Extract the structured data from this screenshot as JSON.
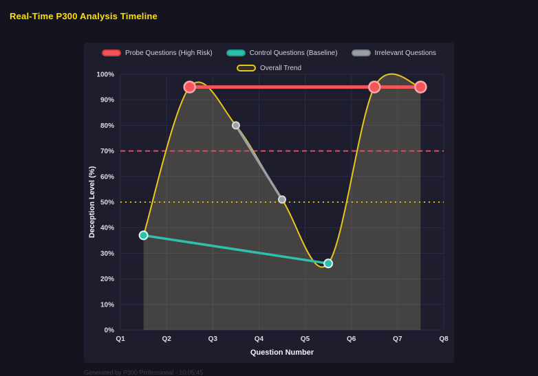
{
  "page": {
    "title": "Real-Time P300 Analysis Timeline",
    "footer": "Generated by P300 Professional - 10:05:45"
  },
  "chart_data": {
    "type": "line",
    "title": "Real-Time P300 Analysis Timeline",
    "xlabel": "Question Number",
    "ylabel": "Deception Level (%)",
    "xlim": [
      1,
      8
    ],
    "ylim": [
      0,
      100
    ],
    "grid": true,
    "legend_position": "top",
    "colors": {
      "grid": "#2b2b45",
      "tick_text": "#dcdce6",
      "axis_label_text": "#f0f0f5",
      "area_fill": "rgba(216,205,140,0.22)"
    },
    "x_ticks": [
      {
        "q": 1,
        "label": "Q1"
      },
      {
        "q": 2,
        "label": "Q2"
      },
      {
        "q": 3,
        "label": "Q3"
      },
      {
        "q": 4,
        "label": "Q4"
      },
      {
        "q": 5,
        "label": "Q5"
      },
      {
        "q": 6,
        "label": "Q6"
      },
      {
        "q": 7,
        "label": "Q7"
      },
      {
        "q": 8,
        "label": "Q8"
      }
    ],
    "y_ticks": [
      {
        "value": 0,
        "label": "0%"
      },
      {
        "value": 10,
        "label": "10%"
      },
      {
        "value": 20,
        "label": "20%"
      },
      {
        "value": 30,
        "label": "30%"
      },
      {
        "value": 40,
        "label": "40%"
      },
      {
        "value": 50,
        "label": "50%"
      },
      {
        "value": 60,
        "label": "60%"
      },
      {
        "value": 70,
        "label": "70%"
      },
      {
        "value": 80,
        "label": "80%"
      },
      {
        "value": 90,
        "label": "90%"
      },
      {
        "value": 100,
        "label": "100%"
      }
    ],
    "legend": [
      {
        "label": "Probe Questions (High Risk)",
        "fill": "#f2555a",
        "stroke": "#d13b44"
      },
      {
        "label": "Control Questions (Baseline)",
        "fill": "#2fbfae",
        "stroke": "#1d9c8d"
      },
      {
        "label": "Irrelevant Questions",
        "fill": "#9aa0a6",
        "stroke": "#7c8287"
      },
      {
        "label": "Overall Trend",
        "fill": "#353021",
        "stroke": "#e8c71d"
      }
    ],
    "legend_rows": [
      [
        0,
        1,
        2
      ],
      [
        3
      ]
    ],
    "series": [
      {
        "id": "probe",
        "name": "Probe Questions (High Risk)",
        "color": "#f2555a",
        "line_width": 5,
        "marker_radius": 8,
        "marker_stroke": "#f9a8a8",
        "marker_stroke_width": 2.5,
        "smooth": false,
        "z": 5,
        "points": [
          [
            2.5,
            95
          ],
          [
            6.5,
            95
          ],
          [
            7.5,
            95
          ]
        ]
      },
      {
        "id": "control",
        "name": "Control Questions (Baseline)",
        "color": "#2fbfae",
        "line_width": 3.5,
        "marker_radius": 6,
        "marker_stroke": "#dff4f1",
        "marker_stroke_width": 2,
        "smooth": false,
        "z": 4,
        "points": [
          [
            1.5,
            37
          ],
          [
            5.5,
            26
          ]
        ]
      },
      {
        "id": "irrelevant",
        "name": "Irrelevant Questions",
        "color": "#9aa0a6",
        "line_width": 3.5,
        "marker_radius": 5,
        "marker_stroke": "#d8d8d8",
        "marker_stroke_width": 2,
        "smooth": false,
        "z": 3,
        "points": [
          [
            3.5,
            80
          ],
          [
            4.5,
            51
          ]
        ]
      },
      {
        "id": "trend",
        "name": "Overall Trend",
        "color": "#e8c71d",
        "line_width": 2,
        "marker_radius": 0,
        "marker_stroke": "#e8c71d",
        "marker_stroke_width": 0,
        "smooth": true,
        "fill": "rgba(216,205,140,0.22)",
        "z": 2,
        "points": [
          [
            1.5,
            37
          ],
          [
            2.5,
            95
          ],
          [
            3.5,
            80
          ],
          [
            4.5,
            51
          ],
          [
            5.5,
            26
          ],
          [
            6.5,
            95
          ],
          [
            7.5,
            95
          ]
        ]
      }
    ],
    "thresholds": [
      {
        "id": "high-risk-threshold",
        "value": 70,
        "color": "#ee4466",
        "dash": "7 5",
        "width": 2
      },
      {
        "id": "baseline-threshold",
        "value": 50,
        "color": "#e0b800",
        "dash": "2 5",
        "width": 2
      }
    ]
  }
}
